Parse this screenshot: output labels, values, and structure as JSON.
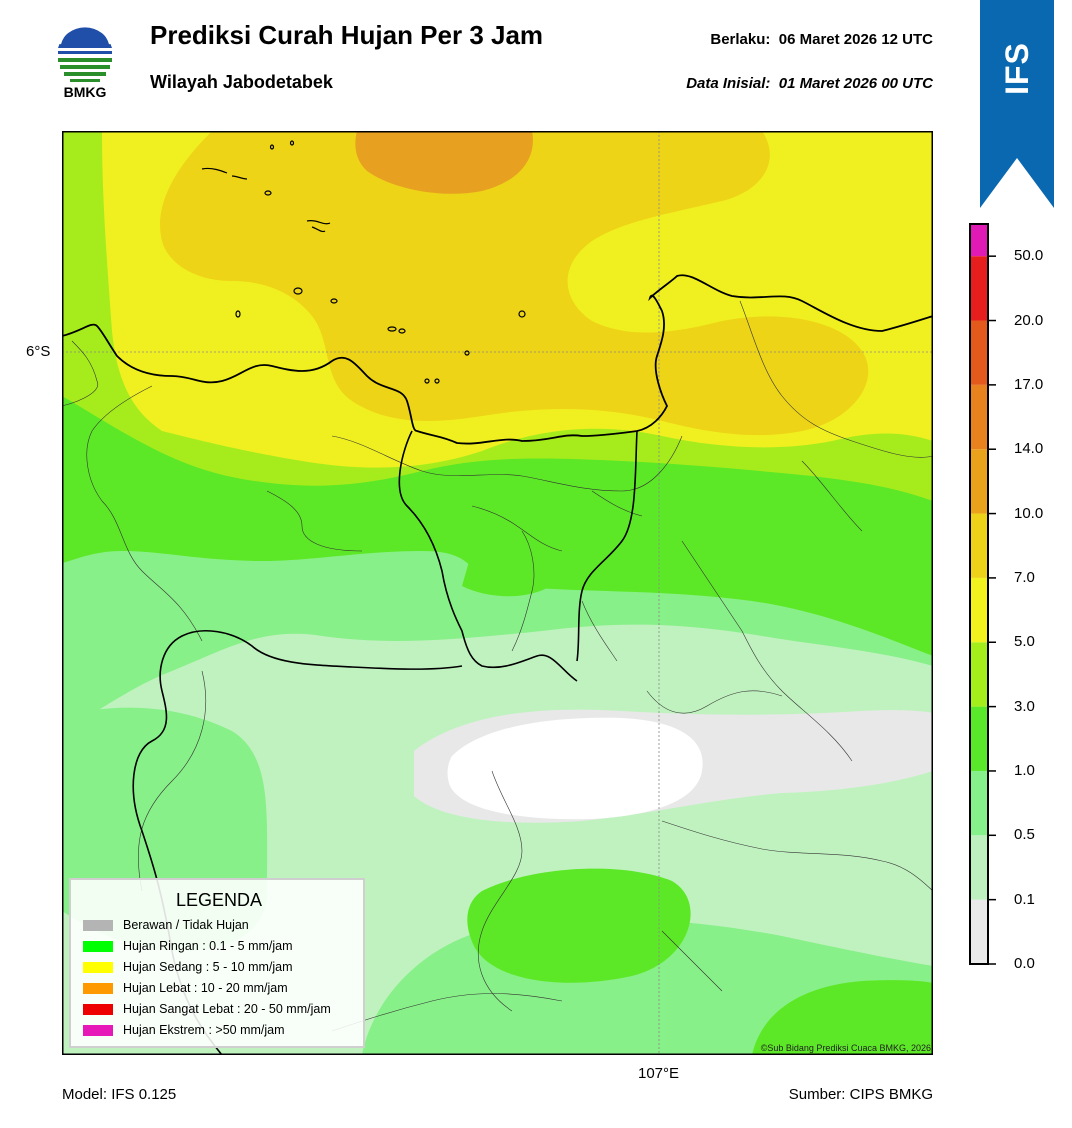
{
  "header": {
    "logo_text": "BMKG",
    "title": "Prediksi Curah Hujan Per 3 Jam",
    "subtitle": "Wilayah Jabodetabek",
    "valid_label": "Berlaku:",
    "valid_value": "06 Maret 2026 12 UTC",
    "init_label": "Data Inisial:",
    "init_value": "01 Maret 2026 00 UTC"
  },
  "model_badge": "IFS",
  "axes": {
    "lat_label": "6°S",
    "lon_label": "107°E"
  },
  "footer": {
    "model": "Model: IFS 0.125",
    "source": "Sumber: CIPS BMKG",
    "copyright": "©Sub Bidang Prediksi Cuaca BMKG, 2026"
  },
  "legend": {
    "title": "LEGENDA",
    "items": [
      {
        "label": "Berawan / Tidak Hujan",
        "color": "#b4b4b4"
      },
      {
        "label": "Hujan Ringan : 0.1 - 5 mm/jam",
        "color": "#00ff00"
      },
      {
        "label": "Hujan Sedang : 5 - 10 mm/jam",
        "color": "#ffff00"
      },
      {
        "label": "Hujan Lebat : 10 - 20 mm/jam",
        "color": "#ff9900"
      },
      {
        "label": "Hujan Sangat Lebat : 20 - 50 mm/jam",
        "color": "#ee0000"
      },
      {
        "label": "Hujan Ekstrem : >50 mm/jam",
        "color": "#e619b8"
      }
    ]
  },
  "colorbar": {
    "levels": [
      "0.0",
      "0.1",
      "0.5",
      "1.0",
      "3.0",
      "5.0",
      "7.0",
      "10.0",
      "14.0",
      "17.0",
      "20.0",
      "50.0"
    ],
    "colors": [
      "#eaeaea",
      "#bdf0be",
      "#86f08a",
      "#5ae82a",
      "#a4ee1c",
      "#f2f21e",
      "#eed21a",
      "#eaa21c",
      "#e8821e",
      "#e45a1c",
      "#e61e1e",
      "#e01ab4"
    ]
  },
  "map_colors": {
    "none": "#e8e8e8",
    "white": "#ffffff",
    "light_green": "#c0f2c0",
    "mid_green": "#88f088",
    "green": "#5ce826",
    "lime": "#a6ec1c",
    "yellow": "#f0f020",
    "gold": "#eed416",
    "orange": "#e8a020"
  }
}
